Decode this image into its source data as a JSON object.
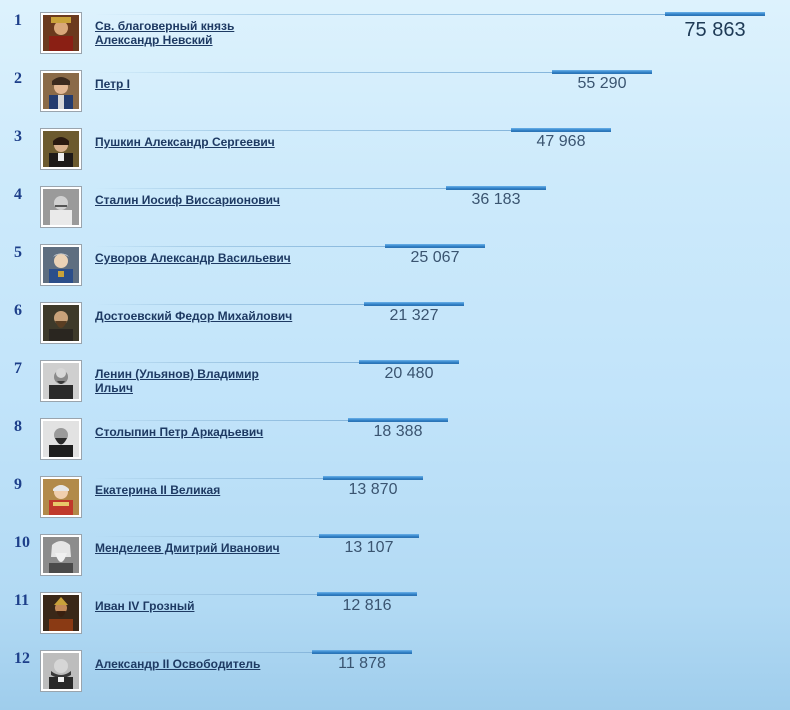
{
  "ratings": [
    {
      "rank": "1",
      "name": "Св. благоверный князь Александр Невский",
      "value": "75 863",
      "value_number": 75863,
      "portrait_icon": "portrait-alexander-nevsky-icon"
    },
    {
      "rank": "2",
      "name": "Петр I",
      "value": "55 290",
      "value_number": 55290,
      "portrait_icon": "portrait-peter-i-icon"
    },
    {
      "rank": "3",
      "name": "Пушкин Александр Сергеевич",
      "value": "47 968",
      "value_number": 47968,
      "portrait_icon": "portrait-pushkin-icon"
    },
    {
      "rank": "4",
      "name": "Сталин Иосиф Виссарионович",
      "value": "36 183",
      "value_number": 36183,
      "portrait_icon": "portrait-stalin-icon"
    },
    {
      "rank": "5",
      "name": "Суворов Александр Васильевич",
      "value": "25 067",
      "value_number": 25067,
      "portrait_icon": "portrait-suvorov-icon"
    },
    {
      "rank": "6",
      "name": "Достоевский Федор Михайлович",
      "value": "21 327",
      "value_number": 21327,
      "portrait_icon": "portrait-dostoevsky-icon"
    },
    {
      "rank": "7",
      "name": "Ленин (Ульянов) Владимир Ильич",
      "value": "20 480",
      "value_number": 20480,
      "portrait_icon": "portrait-lenin-icon"
    },
    {
      "rank": "8",
      "name": "Столыпин Петр Аркадьевич",
      "value": "18 388",
      "value_number": 18388,
      "portrait_icon": "portrait-stolypin-icon"
    },
    {
      "rank": "9",
      "name": "Екатерина II Великая",
      "value": "13 870",
      "value_number": 13870,
      "portrait_icon": "portrait-catherine-ii-icon"
    },
    {
      "rank": "10",
      "name": "Менделеев Дмитрий Иванович",
      "value": "13 107",
      "value_number": 13107,
      "portrait_icon": "portrait-mendeleev-icon"
    },
    {
      "rank": "11",
      "name": "Иван IV Грозный",
      "value": "12 816",
      "value_number": 12816,
      "portrait_icon": "portrait-ivan-iv-icon"
    },
    {
      "rank": "12",
      "name": "Александр II Освободитель",
      "value": "11 878",
      "value_number": 11878,
      "portrait_icon": "portrait-alexander-ii-icon"
    }
  ],
  "colors": {
    "background_top": "#ddf2fd",
    "background_bottom": "#9fcdec",
    "bar": "#2f7fc5",
    "rank_text": "#1d3f8a",
    "name_text": "#1e3a63"
  }
}
